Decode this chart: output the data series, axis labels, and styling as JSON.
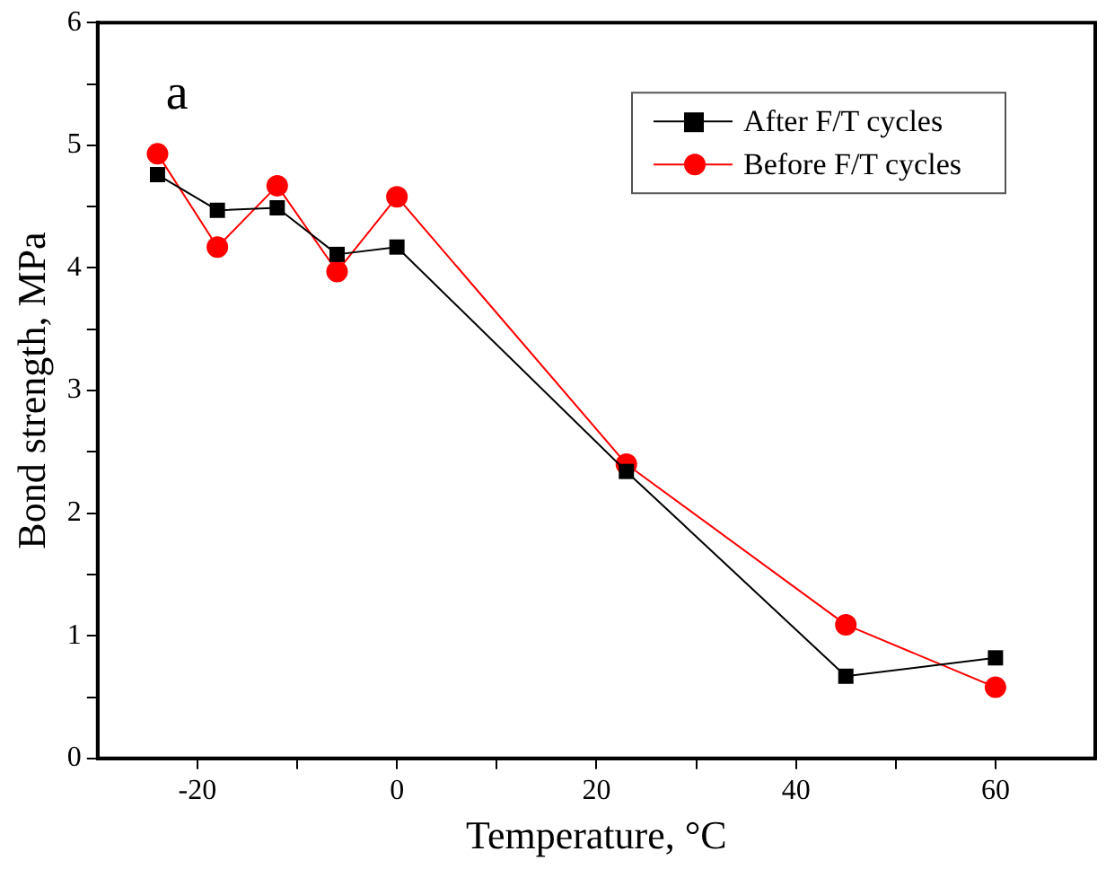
{
  "chart_data": {
    "type": "line",
    "xlabel": "Temperature, °C",
    "ylabel": "Bond strength, MPa",
    "annotations": [
      "a"
    ],
    "x": [
      -24,
      -18,
      -12,
      -6,
      0,
      23,
      45,
      60
    ],
    "series": [
      {
        "name": "After F/T cycles",
        "color": "#000000",
        "marker": "square",
        "values": [
          4.76,
          4.47,
          4.49,
          4.11,
          4.17,
          2.34,
          0.67,
          0.82
        ]
      },
      {
        "name": "Before F/T cycles",
        "color": "#ff0000",
        "marker": "circle",
        "values": [
          4.93,
          4.17,
          4.67,
          3.97,
          4.58,
          2.4,
          1.09,
          0.58
        ]
      }
    ],
    "xlim": [
      -30,
      70
    ],
    "xticks": [
      -20,
      {
        "value": -10,
        "label": null
      },
      0,
      {
        "value": 10,
        "label": null
      },
      20,
      {
        "value": 30,
        "label": null
      },
      40,
      {
        "value": 50,
        "label": null
      },
      60
    ],
    "ylim": [
      0,
      6
    ],
    "yticks": [
      0,
      {
        "value": 0.5,
        "label": null
      },
      1,
      {
        "value": 1.5,
        "label": null
      },
      2,
      {
        "value": 2.5,
        "label": null
      },
      3,
      {
        "value": 3.5,
        "label": null
      },
      4,
      {
        "value": 4.5,
        "label": null
      },
      5,
      {
        "value": 5.5,
        "label": null
      },
      6
    ],
    "legend": "top right",
    "grid": false
  }
}
